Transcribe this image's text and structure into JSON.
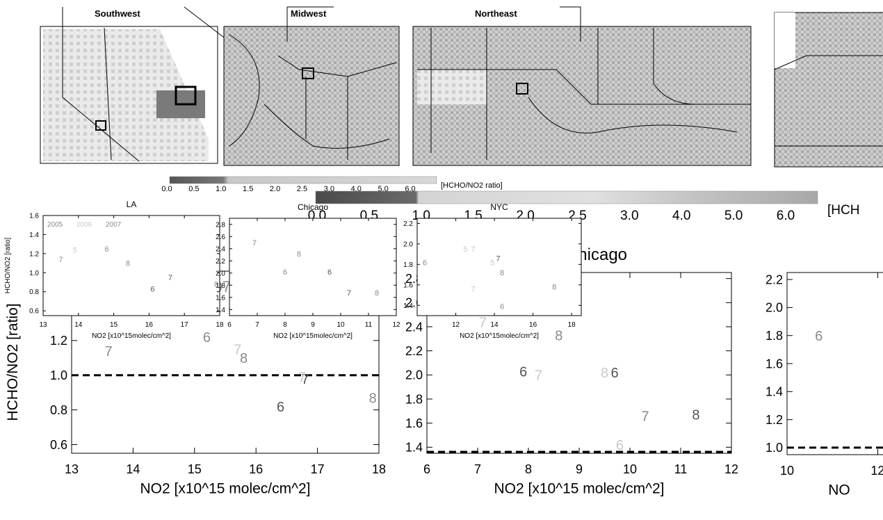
{
  "maps": [
    {
      "title": "Southwest"
    },
    {
      "title": "Midwest"
    },
    {
      "title": "Northeast"
    },
    {
      "title": ""
    }
  ],
  "small_colorbar": {
    "ticks": [
      "0.0",
      "0.5",
      "1.0",
      "1.5",
      "2.0",
      "2.5",
      "3.0",
      "4.0",
      "5.0",
      "6.0"
    ],
    "label": "[HCHO/NO2 ratio]"
  },
  "large_colorbar": {
    "ticks": [
      "0.0",
      "0.5",
      "1.0",
      "1.5",
      "2.0",
      "2.5",
      "3.0",
      "4.0",
      "5.0",
      "6.0"
    ],
    "label": "[HCH"
  },
  "colors": {
    "dark": "#555555",
    "mid": "#8a8a8a",
    "light": "#c8c8c8",
    "grid": "#000000"
  },
  "chart_data": [
    {
      "type": "scatter",
      "title": "LA",
      "xlabel": "NO2 [x10^15 molec/cm^2]",
      "ylabel": "HCHO/NO2 [ratio]",
      "xlim": [
        13,
        18
      ],
      "ylim": [
        0.55,
        1.6
      ],
      "xticks": [
        "13",
        "14",
        "15",
        "16",
        "17",
        "18"
      ],
      "yticks": [
        "0.6",
        "0.8",
        "1.0",
        "1.2",
        "1.4",
        "1.6"
      ],
      "threshold": 1.0,
      "legend": [
        "2005",
        "2006",
        "2007"
      ],
      "points": [
        {
          "x": 13.6,
          "y": 1.14,
          "label": "7",
          "shade": "mid"
        },
        {
          "x": 13.8,
          "y": 1.42,
          "label": "5",
          "shade": "light"
        },
        {
          "x": 14.7,
          "y": 1.42,
          "label": "6",
          "shade": "mid"
        },
        {
          "x": 15.2,
          "y": 1.22,
          "label": "6",
          "shade": "mid"
        },
        {
          "x": 15.7,
          "y": 1.15,
          "label": "7",
          "shade": "light"
        },
        {
          "x": 15.8,
          "y": 1.1,
          "label": "8",
          "shade": "mid"
        },
        {
          "x": 16.4,
          "y": 0.82,
          "label": "6",
          "shade": "dark"
        },
        {
          "x": 16.8,
          "y": 0.98,
          "label": "7",
          "shade": "dark"
        },
        {
          "x": 16.75,
          "y": 0.99,
          "label": "7",
          "shade": "light"
        },
        {
          "x": 17.9,
          "y": 0.87,
          "label": "8",
          "shade": "mid"
        }
      ]
    },
    {
      "type": "scatter",
      "title": "Chicago",
      "xlabel": "NO2 [x10^15 molec/cm^2]",
      "ylabel": "",
      "xlim": [
        6,
        12
      ],
      "ylim": [
        1.35,
        2.85
      ],
      "xticks": [
        "6",
        "7",
        "8",
        "9",
        "10",
        "11",
        "12"
      ],
      "yticks": [
        "1.4",
        "1.6",
        "1.8",
        "2.0",
        "2.2",
        "2.4",
        "2.6",
        "2.8"
      ],
      "threshold": 1.0,
      "legend": [],
      "points": [
        {
          "x": 7.1,
          "y": 2.44,
          "label": "7",
          "shade": "light"
        },
        {
          "x": 8.6,
          "y": 2.33,
          "label": "8",
          "shade": "mid"
        },
        {
          "x": 7.9,
          "y": 2.03,
          "label": "6",
          "shade": "dark"
        },
        {
          "x": 8.2,
          "y": 2.0,
          "label": "7",
          "shade": "light"
        },
        {
          "x": 9.5,
          "y": 2.02,
          "label": "8",
          "shade": "light"
        },
        {
          "x": 9.7,
          "y": 2.02,
          "label": "6",
          "shade": "dark"
        },
        {
          "x": 10.3,
          "y": 1.66,
          "label": "7",
          "shade": "mid"
        },
        {
          "x": 11.3,
          "y": 1.67,
          "label": "8",
          "shade": "dark"
        },
        {
          "x": 9.8,
          "y": 1.42,
          "label": "6",
          "shade": "light"
        }
      ]
    },
    {
      "type": "scatter",
      "title": "",
      "xlabel": "NO",
      "ylabel": "",
      "xlim": [
        10,
        12.3
      ],
      "ylim": [
        0.95,
        2.25
      ],
      "xticks": [
        "10",
        "12"
      ],
      "yticks": [
        "1.0",
        "1.2",
        "1.4",
        "1.6",
        "1.8",
        "2.0",
        "2.2"
      ],
      "threshold": 1.0,
      "legend": [],
      "points": [
        {
          "x": 10.7,
          "y": 1.8,
          "label": "6",
          "shade": "mid"
        },
        {
          "x": 12.2,
          "y": 1.93,
          "label": "6",
          "shade": "light"
        }
      ]
    },
    {
      "type": "scatter",
      "title": "LA",
      "xlabel": "NO2 [x10^15molec/cm^2]",
      "ylabel": "HCHO/NO2 [ratio]",
      "xlim": [
        13,
        18
      ],
      "ylim": [
        0.55,
        1.6
      ],
      "xticks": [
        "13",
        "14",
        "15",
        "16",
        "17",
        "18"
      ],
      "yticks": [
        "0.6",
        "0.8",
        "1.0",
        "1.2",
        "1.4",
        "1.6"
      ],
      "legend": [
        "2005",
        "2006",
        "2007"
      ],
      "points": [
        {
          "x": 13.5,
          "y": 1.14,
          "label": "7",
          "shade": "mid"
        },
        {
          "x": 13.9,
          "y": 1.24,
          "label": "5",
          "shade": "light"
        },
        {
          "x": 14.8,
          "y": 1.25,
          "label": "6",
          "shade": "mid"
        },
        {
          "x": 15.4,
          "y": 1.1,
          "label": "8",
          "shade": "mid"
        },
        {
          "x": 16.6,
          "y": 0.95,
          "label": "7",
          "shade": "dark"
        },
        {
          "x": 16.1,
          "y": 0.83,
          "label": "6",
          "shade": "dark"
        },
        {
          "x": 17.9,
          "y": 0.88,
          "label": "8",
          "shade": "mid"
        }
      ]
    },
    {
      "type": "scatter",
      "title": "Chicago",
      "xlabel": "NO2 [x10^15molec/cm^2]",
      "ylabel": "",
      "xlim": [
        6,
        12
      ],
      "ylim": [
        1.3,
        2.9
      ],
      "xticks": [
        "6",
        "7",
        "8",
        "9",
        "10",
        "11",
        "12"
      ],
      "yticks": [
        "1.4",
        "1.6",
        "1.8",
        "2.0",
        "2.2",
        "2.4",
        "2.6",
        "2.8"
      ],
      "legend": [],
      "points": [
        {
          "x": 6.9,
          "y": 2.5,
          "label": "7",
          "shade": "mid"
        },
        {
          "x": 8.5,
          "y": 2.32,
          "label": "8",
          "shade": "mid"
        },
        {
          "x": 8.0,
          "y": 2.02,
          "label": "6",
          "shade": "mid"
        },
        {
          "x": 9.6,
          "y": 2.02,
          "label": "6",
          "shade": "dark"
        },
        {
          "x": 10.3,
          "y": 1.68,
          "label": "7",
          "shade": "dark"
        },
        {
          "x": 11.3,
          "y": 1.68,
          "label": "8",
          "shade": "mid"
        }
      ]
    },
    {
      "type": "scatter",
      "title": "NYC",
      "xlabel": "NO2 [x10^15molec/cm^2]",
      "ylabel": "",
      "xlim": [
        10,
        18.5
      ],
      "ylim": [
        1.3,
        2.25
      ],
      "xticks": [
        "12",
        "14",
        "16",
        "18"
      ],
      "yticks": [
        "1.4",
        "1.6",
        "1.8",
        "2.0",
        "2.2"
      ],
      "legend": [],
      "points": [
        {
          "x": 10.4,
          "y": 1.82,
          "label": "6",
          "shade": "mid"
        },
        {
          "x": 12.5,
          "y": 1.95,
          "label": "5",
          "shade": "light"
        },
        {
          "x": 12.9,
          "y": 1.95,
          "label": "7",
          "shade": "light"
        },
        {
          "x": 13.9,
          "y": 1.82,
          "label": "5",
          "shade": "light"
        },
        {
          "x": 14.2,
          "y": 1.86,
          "label": "7",
          "shade": "dark"
        },
        {
          "x": 14.4,
          "y": 1.72,
          "label": "8",
          "shade": "mid"
        },
        {
          "x": 12.9,
          "y": 1.56,
          "label": "7",
          "shade": "light"
        },
        {
          "x": 14.4,
          "y": 1.39,
          "label": "6",
          "shade": "mid"
        },
        {
          "x": 17.1,
          "y": 1.58,
          "label": "8",
          "shade": "mid"
        }
      ]
    }
  ]
}
